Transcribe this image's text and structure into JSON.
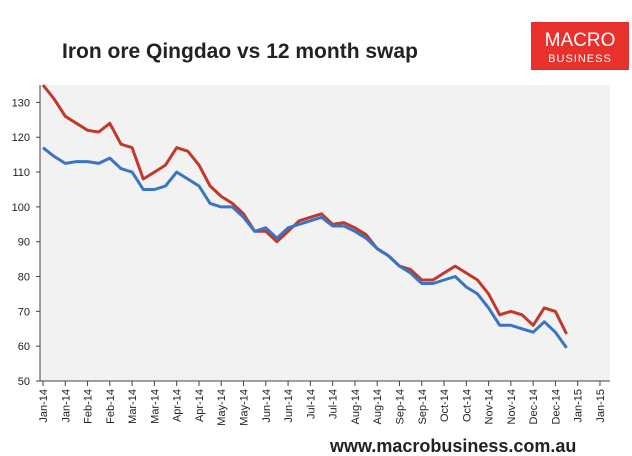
{
  "chart_data": {
    "type": "line",
    "title": "Iron ore Qingdao vs 12 month swap",
    "categories": [
      "Jan-14",
      null,
      "Jan-14",
      null,
      "Feb-14",
      null,
      "Feb-14",
      null,
      "Mar-14",
      null,
      "Mar-14",
      null,
      "Apr-14",
      null,
      "Apr-14",
      null,
      "May-14",
      null,
      "May-14",
      null,
      "Jun-14",
      null,
      "Jun-14",
      null,
      "Jul-14",
      null,
      "Jul-14",
      null,
      "Aug-14",
      null,
      "Aug-14",
      null,
      "Sep-14",
      null,
      "Sep-14",
      null,
      "Oct-14",
      null,
      "Oct-14",
      null,
      "Nov-14",
      null,
      "Nov-14",
      null,
      "Dec-14",
      null,
      "Dec-14",
      null,
      "Jan-15",
      null,
      "Jan-15"
    ],
    "series": [
      {
        "color": "#c0392b",
        "values": [
          135,
          131,
          126,
          124,
          122,
          121.5,
          124,
          118,
          117,
          108,
          110,
          112,
          117,
          116,
          112,
          106,
          103,
          101,
          98,
          93,
          93,
          90,
          93,
          96,
          97,
          98,
          95,
          95.5,
          94,
          92,
          88,
          86,
          83,
          82,
          79,
          79,
          81,
          83,
          81,
          79,
          75,
          69,
          70,
          69,
          66,
          71,
          70,
          63.5,
          null,
          null,
          null
        ]
      },
      {
        "color": "#3a74c4",
        "values": [
          117,
          114.5,
          112.5,
          113,
          113,
          112.5,
          114,
          111,
          110,
          105,
          105,
          106,
          110,
          108,
          106,
          101,
          100,
          100,
          97,
          93,
          94,
          91,
          94,
          95,
          96,
          97,
          94.5,
          94.5,
          93,
          91,
          88,
          86,
          83,
          81,
          78,
          78,
          79,
          80,
          77,
          75,
          71,
          66,
          66,
          65,
          64,
          67,
          64,
          59.5,
          null,
          null,
          null
        ]
      }
    ],
    "ylim": [
      50,
      135
    ],
    "yticks": [
      50,
      60,
      70,
      80,
      90,
      100,
      110,
      120,
      130
    ],
    "grid": false
  },
  "logo": {
    "line1": "MACRO",
    "line2": "BUSINESS"
  },
  "footer": "www.macrobusiness.com.au"
}
